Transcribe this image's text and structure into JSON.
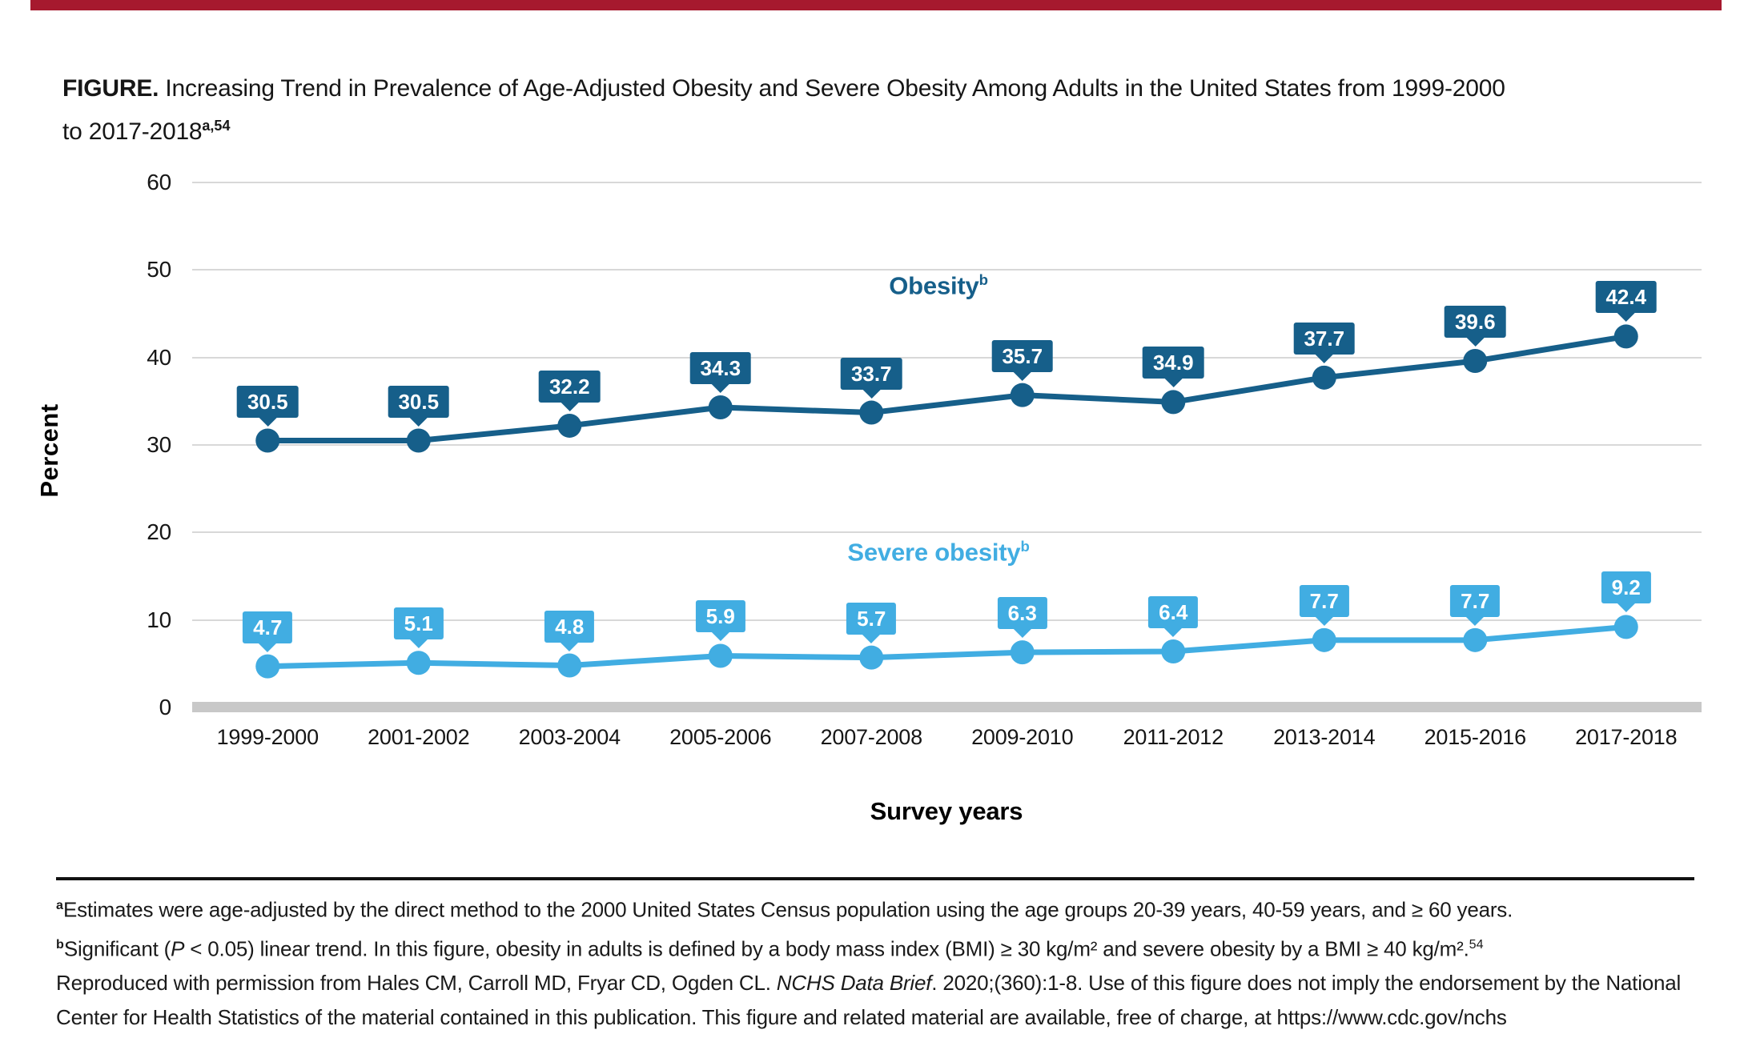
{
  "accent_bar_color": "#A6192E",
  "title": {
    "label": "FIGURE.",
    "line1": "Increasing Trend in Prevalence of Age-Adjusted Obesity and Severe Obesity Among Adults in the United States from 1999-2000",
    "line2": "to 2017-2018",
    "superscript": "a,54"
  },
  "chart_data": {
    "type": "line",
    "title": "Increasing Trend in Prevalence of Age-Adjusted Obesity and Severe Obesity Among Adults in the United States from 1999-2000 to 2017-2018",
    "categories": [
      "1999-2000",
      "2001-2002",
      "2003-2004",
      "2005-2006",
      "2007-2008",
      "2009-2010",
      "2011-2012",
      "2013-2014",
      "2015-2016",
      "2017-2018"
    ],
    "series": [
      {
        "name": "Obesity",
        "superscript": "b",
        "color": "#165F8A",
        "values": [
          30.5,
          30.5,
          32.2,
          34.3,
          33.7,
          35.7,
          34.9,
          37.7,
          39.6,
          42.4
        ]
      },
      {
        "name": "Severe obesity",
        "superscript": "b",
        "color": "#41ADE2",
        "values": [
          4.7,
          5.1,
          4.8,
          5.9,
          5.7,
          6.3,
          6.4,
          7.7,
          7.7,
          9.2
        ]
      }
    ],
    "xlabel": "Survey years",
    "ylabel": "Percent",
    "ylim": [
      0,
      60
    ],
    "yticks": [
      0,
      10,
      20,
      30,
      40,
      50,
      60
    ],
    "grid": true,
    "data_labels": true,
    "legend_position": "inline"
  },
  "footnotes": {
    "a": {
      "sup": "a",
      "text": "Estimates were age-adjusted by the direct method to the 2000 United States Census population using the age groups 20-39 years, 40-59 years, and ≥ 60 years."
    },
    "b": {
      "sup": "b",
      "t1": "Significant (",
      "italic": "P",
      "t2": " < 0.05) linear trend. In this figure, obesity in adults is defined by a body mass index (BMI) ≥ 30 kg/m² and severe obesity by a BMI ≥ 40 kg/m².",
      "sup2": "54"
    },
    "c": {
      "t1": "Reproduced with permission from Hales CM, Carroll MD, Fryar CD, Ogden CL. ",
      "italic": "NCHS Data Brief",
      "t2": ". 2020;(360):1-8. Use of this figure does not imply the endorsement by the National Center for Health Statistics of the material contained in this publication. This figure and related material are available, free of charge, at https://www.cdc.gov/nchs"
    }
  }
}
